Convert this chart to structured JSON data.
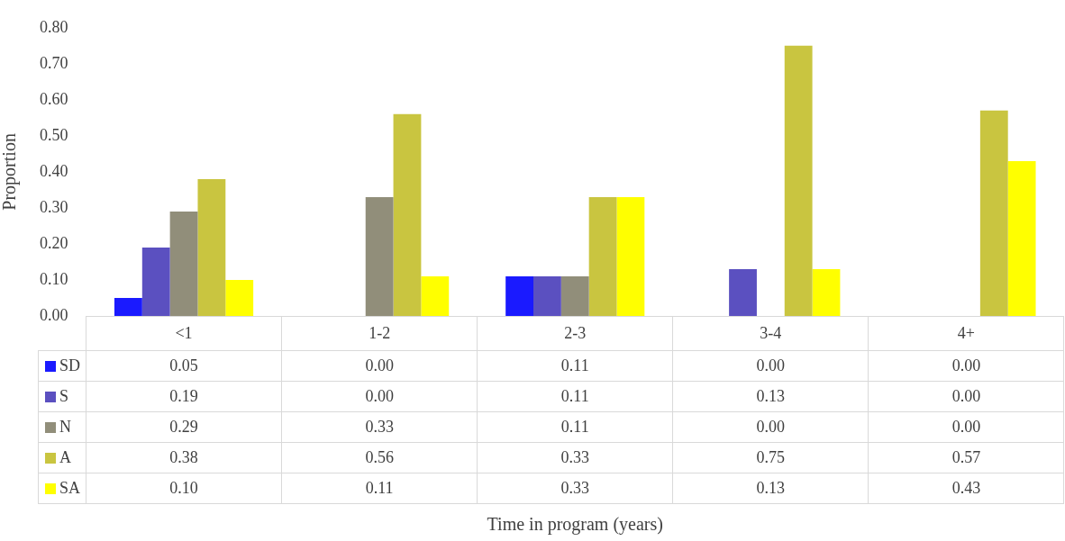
{
  "chart_data": {
    "type": "bar",
    "annotations": [
      "Time in program (years)"
    ],
    "ylabel": "Proportion",
    "categories": [
      "<1",
      "1-2",
      "2-3",
      "3-4",
      "4+"
    ],
    "series": [
      {
        "name": "SD",
        "color": "#1a1aff",
        "values": [
          0.05,
          0,
          0.11,
          0,
          0
        ],
        "value_labels": [
          "0.05",
          "0.00",
          "0.11",
          "0.00",
          "0.00"
        ]
      },
      {
        "name": "S",
        "color": "#5b50c0",
        "values": [
          0.19,
          0,
          0.11,
          0.13,
          0
        ],
        "value_labels": [
          "0.19",
          "0.00",
          "0.11",
          "0.13",
          "0.00"
        ]
      },
      {
        "name": "N",
        "color": "#918e7a",
        "values": [
          0.29,
          0.33,
          0.11,
          0,
          0
        ],
        "value_labels": [
          "0.29",
          "0.33",
          "0.11",
          "0.00",
          "0.00"
        ]
      },
      {
        "name": "A",
        "color": "#c9c540",
        "values": [
          0.38,
          0.56,
          0.33,
          0.75,
          0.57
        ],
        "value_labels": [
          "0.38",
          "0.56",
          "0.33",
          "0.75",
          "0.57"
        ]
      },
      {
        "name": "SA",
        "color": "#ffff00",
        "values": [
          0.1,
          0.11,
          0.33,
          0.13,
          0.43
        ],
        "value_labels": [
          "0.10",
          "0.11",
          "0.33",
          "0.13",
          "0.43"
        ]
      }
    ],
    "ylim": [
      0,
      0.8
    ],
    "yticks": [
      {
        "value": 0,
        "label": "0.00"
      },
      {
        "value": 0.1,
        "label": "0.10"
      },
      {
        "value": 0.2,
        "label": "0.20"
      },
      {
        "value": 0.3,
        "label": "0.30"
      },
      {
        "value": 0.4,
        "label": "0.40"
      },
      {
        "value": 0.5,
        "label": "0.50"
      },
      {
        "value": 0.6,
        "label": "0.60"
      },
      {
        "value": 0.7,
        "label": "0.70"
      },
      {
        "value": 0.8,
        "label": "0.80"
      }
    ],
    "grid": false,
    "legend": "bottom"
  }
}
